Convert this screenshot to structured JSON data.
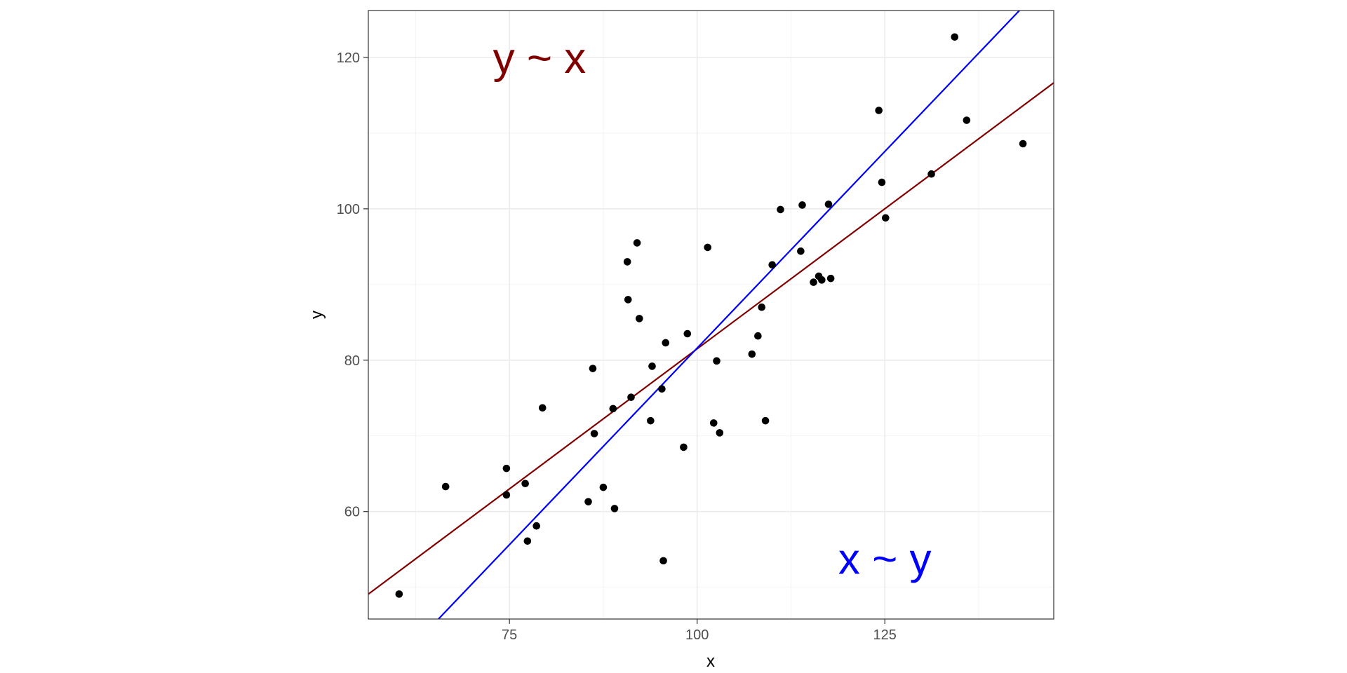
{
  "chart_data": {
    "type": "scatter",
    "xlabel": "x",
    "ylabel": "y",
    "xlim": [
      56.2,
      147.5
    ],
    "ylim": [
      45.8,
      126.2
    ],
    "x_ticks": [
      75,
      100,
      125
    ],
    "y_ticks": [
      60,
      80,
      100,
      120
    ],
    "x_minor": [
      62.5,
      87.5,
      112.5,
      137.5
    ],
    "y_minor": [
      50,
      70,
      90,
      110
    ],
    "grid": true,
    "points": [
      [
        60.3,
        49.1
      ],
      [
        66.5,
        63.3
      ],
      [
        74.6,
        65.7
      ],
      [
        74.6,
        62.2
      ],
      [
        77.1,
        63.7
      ],
      [
        77.4,
        56.1
      ],
      [
        78.6,
        58.1
      ],
      [
        79.4,
        73.7
      ],
      [
        85.5,
        61.3
      ],
      [
        86.1,
        78.9
      ],
      [
        86.3,
        70.3
      ],
      [
        87.5,
        63.2
      ],
      [
        88.8,
        73.6
      ],
      [
        89.0,
        60.4
      ],
      [
        90.7,
        93.0
      ],
      [
        90.8,
        88.0
      ],
      [
        91.2,
        75.1
      ],
      [
        92.0,
        95.5
      ],
      [
        92.3,
        85.5
      ],
      [
        93.8,
        72.0
      ],
      [
        94.0,
        79.2
      ],
      [
        95.3,
        76.2
      ],
      [
        95.5,
        53.5
      ],
      [
        95.8,
        82.3
      ],
      [
        98.2,
        68.5
      ],
      [
        98.7,
        83.5
      ],
      [
        101.4,
        94.9
      ],
      [
        102.2,
        71.7
      ],
      [
        102.6,
        79.9
      ],
      [
        103.0,
        70.4
      ],
      [
        107.3,
        80.8
      ],
      [
        108.1,
        83.2
      ],
      [
        108.6,
        87.0
      ],
      [
        109.1,
        72.0
      ],
      [
        110.0,
        92.6
      ],
      [
        111.1,
        99.9
      ],
      [
        113.8,
        94.4
      ],
      [
        114.0,
        100.5
      ],
      [
        115.5,
        90.3
      ],
      [
        116.2,
        91.1
      ],
      [
        116.6,
        90.6
      ],
      [
        117.5,
        100.6
      ],
      [
        117.8,
        90.8
      ],
      [
        124.2,
        113.0
      ],
      [
        124.6,
        103.5
      ],
      [
        125.1,
        98.8
      ],
      [
        131.2,
        104.6
      ],
      [
        134.3,
        122.7
      ],
      [
        135.9,
        111.7
      ],
      [
        143.4,
        108.6
      ]
    ],
    "series": [
      {
        "name": "y ~ x",
        "color": "#800000",
        "slope": 0.74,
        "intercept": 7.5
      },
      {
        "name": "x ~ y",
        "color": "#0000ff",
        "slope": 1.039,
        "intercept": -22.3
      }
    ],
    "annotations": [
      {
        "text": "y ~ x",
        "color": "#800000",
        "x": 79.0,
        "y": 120.0
      },
      {
        "text": "x ~ y",
        "color": "#0000ff",
        "x": 125.0,
        "y": 53.8
      }
    ]
  }
}
